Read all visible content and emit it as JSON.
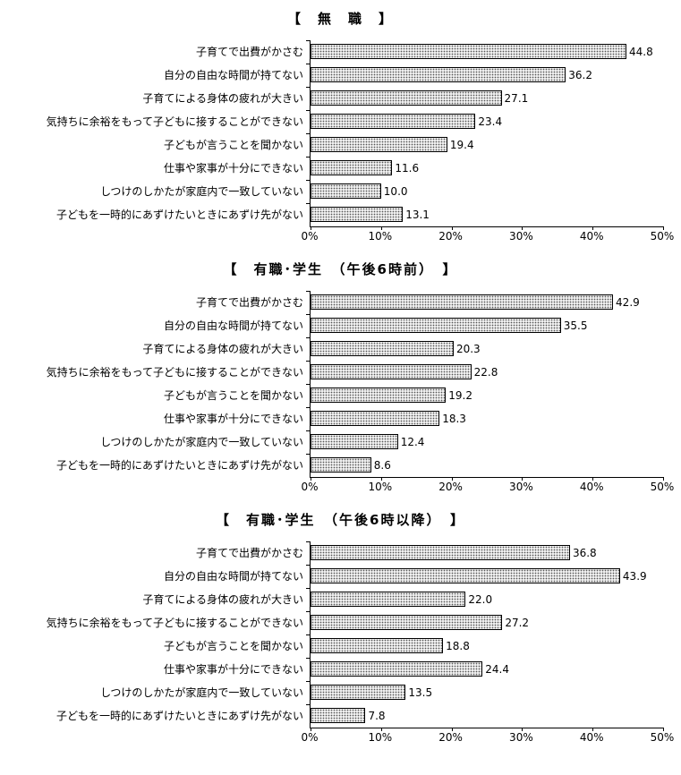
{
  "chart_data": [
    {
      "type": "bar",
      "orientation": "horizontal",
      "title": "【　無　職　】",
      "categories": [
        "子育てで出費がかさむ",
        "自分の自由な時間が持てない",
        "子育てによる身体の疲れが大きい",
        "気持ちに余裕をもって子どもに接することができない",
        "子どもが言うことを聞かない",
        "仕事や家事が十分にできない",
        "しつけのしかたが家庭内で一致していない",
        "子どもを一時的にあずけたいときにあずけ先がない"
      ],
      "values": [
        44.8,
        36.2,
        27.1,
        23.4,
        19.4,
        11.6,
        10.0,
        13.1
      ],
      "xlim": [
        0,
        50
      ],
      "x_tick_labels": [
        "0%",
        "10%",
        "20%",
        "30%",
        "40%",
        "50%"
      ],
      "grid": false,
      "legend": false
    },
    {
      "type": "bar",
      "orientation": "horizontal",
      "title": "【　有職･学生　（午後6時前）　】",
      "categories": [
        "子育てで出費がかさむ",
        "自分の自由な時間が持てない",
        "子育てによる身体の疲れが大きい",
        "気持ちに余裕をもって子どもに接することができない",
        "子どもが言うことを聞かない",
        "仕事や家事が十分にできない",
        "しつけのしかたが家庭内で一致していない",
        "子どもを一時的にあずけたいときにあずけ先がない"
      ],
      "values": [
        42.9,
        35.5,
        20.3,
        22.8,
        19.2,
        18.3,
        12.4,
        8.6
      ],
      "xlim": [
        0,
        50
      ],
      "x_tick_labels": [
        "0%",
        "10%",
        "20%",
        "30%",
        "40%",
        "50%"
      ],
      "grid": false,
      "legend": false
    },
    {
      "type": "bar",
      "orientation": "horizontal",
      "title": "【　有職･学生　（午後6時以降）　】",
      "categories": [
        "子育てで出費がかさむ",
        "自分の自由な時間が持てない",
        "子育てによる身体の疲れが大きい",
        "気持ちに余裕をもって子どもに接することができない",
        "子どもが言うことを聞かない",
        "仕事や家事が十分にできない",
        "しつけのしかたが家庭内で一致していない",
        "子どもを一時的にあずけたいときにあずけ先がない"
      ],
      "values": [
        36.8,
        43.9,
        22.0,
        27.2,
        18.8,
        24.4,
        13.5,
        7.8
      ],
      "xlim": [
        0,
        50
      ],
      "x_tick_labels": [
        "0%",
        "10%",
        "20%",
        "30%",
        "40%",
        "50%"
      ],
      "grid": false,
      "legend": false
    }
  ]
}
